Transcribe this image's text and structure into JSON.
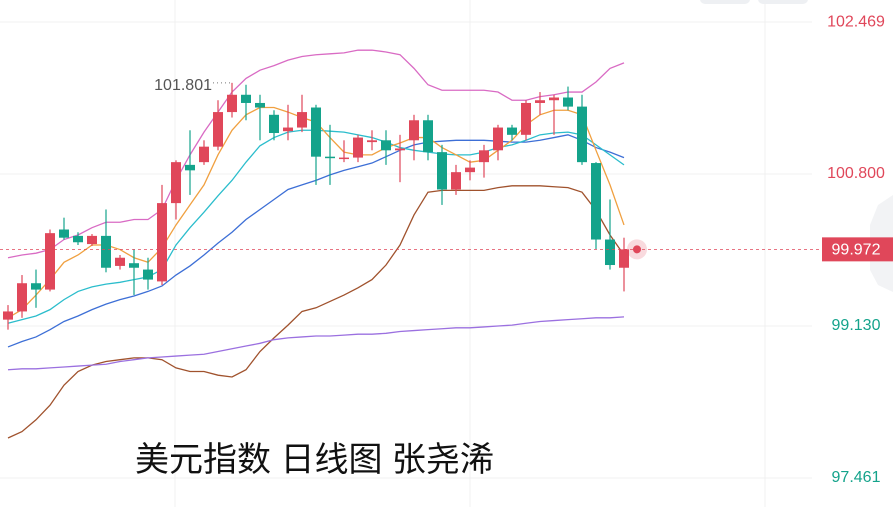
{
  "chart_data": {
    "type": "candlestick",
    "title": "美元指数 日线图 张尧浠",
    "categories": [
      null,
      null,
      null,
      null,
      null,
      null,
      null,
      null,
      null,
      null,
      null,
      null,
      null,
      null,
      null,
      null,
      null,
      null,
      null,
      null,
      null,
      null,
      null,
      null,
      null,
      null,
      null,
      null,
      null,
      null,
      null,
      null,
      null,
      null,
      null,
      null,
      null,
      null,
      null,
      null,
      null,
      null,
      null,
      null,
      null
    ],
    "open": [
      99.2,
      99.29,
      99.6,
      99.53,
      100.19,
      100.12,
      100.03,
      100.12,
      99.79,
      99.82,
      99.75,
      99.62,
      100.48,
      100.9,
      100.93,
      101.1,
      101.48,
      101.67,
      101.58,
      101.45,
      101.27,
      101.31,
      101.53,
      100.99,
      100.97,
      100.98,
      101.15,
      101.17,
      101.06,
      101.17,
      101.39,
      101.04,
      100.63,
      100.82,
      100.93,
      101.06,
      101.31,
      101.23,
      101.58,
      101.61,
      101.64,
      101.54,
      100.92,
      100.08,
      99.77
    ],
    "high": [
      99.36,
      99.69,
      99.75,
      100.19,
      100.32,
      100.16,
      100.14,
      100.41,
      99.91,
      99.97,
      99.88,
      100.68,
      100.95,
      101.28,
      101.17,
      101.61,
      101.801,
      101.78,
      101.67,
      101.5,
      101.56,
      101.67,
      101.56,
      101.34,
      101.17,
      101.23,
      101.28,
      101.28,
      101.23,
      101.45,
      101.45,
      101.12,
      100.9,
      100.95,
      101.12,
      101.34,
      101.34,
      101.61,
      101.7,
      101.67,
      101.76,
      101.67,
      100.93,
      100.52,
      100.1
    ],
    "low": [
      99.09,
      99.22,
      99.33,
      99.51,
      100.08,
      100.02,
      100.01,
      99.72,
      99.75,
      99.47,
      99.53,
      99.58,
      100.3,
      100.57,
      100.9,
      101.06,
      101.42,
      101.39,
      101.17,
      101.17,
      101.17,
      101.26,
      100.68,
      100.68,
      100.93,
      100.93,
      101.06,
      100.9,
      100.71,
      100.95,
      100.95,
      100.46,
      100.57,
      100.73,
      100.76,
      100.95,
      101.17,
      101.17,
      101.45,
      101.23,
      101.5,
      100.9,
      99.97,
      99.75,
      99.51
    ],
    "close": [
      99.29,
      99.6,
      99.53,
      100.15,
      100.1,
      100.05,
      100.12,
      99.77,
      99.88,
      99.77,
      99.64,
      100.48,
      100.93,
      100.84,
      101.1,
      101.48,
      101.67,
      101.58,
      101.53,
      101.25,
      101.31,
      101.48,
      100.99,
      100.98,
      100.98,
      101.2,
      101.17,
      101.06,
      101.08,
      101.39,
      101.04,
      100.63,
      100.82,
      100.87,
      101.06,
      101.31,
      101.23,
      101.58,
      101.61,
      101.64,
      101.54,
      100.93,
      100.08,
      99.8,
      99.972
    ],
    "up_color": "#e0475a",
    "down_color": "#14a38b",
    "series": [
      {
        "color": "#d96bc4",
        "values": [
          99.88,
          99.91,
          99.93,
          99.97,
          100.08,
          100.13,
          100.21,
          100.27,
          100.27,
          100.3,
          100.3,
          100.41,
          100.73,
          101.01,
          101.26,
          101.48,
          101.7,
          101.85,
          101.94,
          101.99,
          102.05,
          102.09,
          102.11,
          102.12,
          102.13,
          102.16,
          102.16,
          102.14,
          102.11,
          101.96,
          101.78,
          101.72,
          101.72,
          101.72,
          101.72,
          101.7,
          101.61,
          101.61,
          101.65,
          101.67,
          101.7,
          101.7,
          101.81,
          101.96,
          102.02
        ]
      },
      {
        "color": "#a0522d",
        "values": [
          97.9,
          97.97,
          98.1,
          98.26,
          98.48,
          98.63,
          98.7,
          98.74,
          98.76,
          98.78,
          98.78,
          98.76,
          98.67,
          98.63,
          98.63,
          98.59,
          98.57,
          98.65,
          98.85,
          99.0,
          99.14,
          99.29,
          99.33,
          99.4,
          99.47,
          99.55,
          99.64,
          99.8,
          100.02,
          100.35,
          100.6,
          100.62,
          100.62,
          100.62,
          100.62,
          100.65,
          100.67,
          100.67,
          100.67,
          100.66,
          100.65,
          100.6,
          100.4,
          100.13,
          99.91
        ]
      },
      {
        "color": "#3d6fd6",
        "values": [
          98.9,
          98.96,
          99.01,
          99.09,
          99.18,
          99.24,
          99.31,
          99.37,
          99.42,
          99.46,
          99.51,
          99.57,
          99.69,
          99.79,
          99.91,
          100.04,
          100.16,
          100.3,
          100.41,
          100.52,
          100.63,
          100.68,
          100.73,
          100.79,
          100.84,
          100.88,
          100.92,
          100.99,
          101.06,
          101.12,
          101.15,
          101.16,
          101.17,
          101.17,
          101.17,
          101.16,
          101.15,
          101.15,
          101.17,
          101.2,
          101.23,
          101.17,
          101.09,
          101.04,
          100.98
        ]
      },
      {
        "color": "#2bbdcc",
        "values": [
          99.16,
          99.2,
          99.24,
          99.31,
          99.42,
          99.51,
          99.56,
          99.59,
          99.61,
          99.64,
          99.67,
          99.75,
          100.02,
          100.21,
          100.38,
          100.56,
          100.73,
          100.93,
          101.11,
          101.2,
          101.26,
          101.28,
          101.28,
          101.27,
          101.26,
          101.23,
          101.2,
          101.15,
          101.09,
          101.06,
          101.04,
          101.02,
          101.01,
          101.01,
          101.04,
          101.09,
          101.12,
          101.17,
          101.23,
          101.25,
          101.26,
          101.23,
          101.12,
          101.01,
          100.9
        ]
      },
      {
        "color": "#f0a040",
        "values": [
          99.22,
          99.31,
          99.47,
          99.64,
          99.83,
          99.91,
          100.02,
          100.02,
          99.97,
          99.88,
          99.83,
          99.99,
          100.24,
          100.46,
          100.68,
          101.01,
          101.28,
          101.45,
          101.53,
          101.53,
          101.48,
          101.42,
          101.37,
          101.2,
          101.04,
          101.01,
          101.01,
          101.09,
          101.14,
          101.2,
          101.2,
          101.09,
          101.01,
          100.93,
          100.95,
          101.06,
          101.17,
          101.34,
          101.45,
          101.5,
          101.5,
          101.45,
          101.06,
          100.68,
          100.24
        ]
      },
      {
        "color": "#9b70e0",
        "values": [
          98.65,
          98.66,
          98.66,
          98.67,
          98.68,
          98.69,
          98.7,
          98.71,
          98.74,
          98.76,
          98.78,
          98.79,
          98.8,
          98.81,
          98.82,
          98.85,
          98.88,
          98.91,
          98.94,
          98.98,
          99.0,
          99.01,
          99.02,
          99.02,
          99.03,
          99.04,
          99.04,
          99.05,
          99.07,
          99.08,
          99.09,
          99.1,
          99.11,
          99.11,
          99.12,
          99.13,
          99.14,
          99.16,
          99.18,
          99.19,
          99.2,
          99.21,
          99.22,
          99.22,
          99.23
        ]
      }
    ],
    "ylim": [
      97.142,
      102.711
    ],
    "yticks": [
      102.469,
      {
        "value": 100.8,
        "label": "100.800"
      },
      {
        "value": 99.13,
        "label": "99.130"
      },
      97.461
    ],
    "grid": true
  }
}
